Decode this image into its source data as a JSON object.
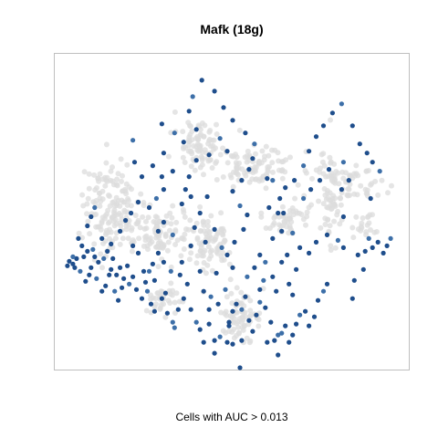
{
  "chart_data": {
    "type": "scatter",
    "title": "Mafk (18g)",
    "caption": "Cells with AUC > 0.013",
    "xlabel": "",
    "ylabel": "",
    "xlim": [
      0,
      390
    ],
    "ylim": [
      0,
      348
    ],
    "axes_visible": false,
    "grid": false,
    "legend": "none",
    "colors": {
      "background_points": "#dcdcdc",
      "highlight_points": "#1f4e8c",
      "highlight_points_alt": "#3d6fa8",
      "panel_border": "#bfbfbf"
    },
    "background_clusters": [
      {
        "name": "",
        "center": [
          62,
          170
        ],
        "spread": [
          28,
          48
        ],
        "count": 150
      },
      {
        "name": "",
        "center": [
          115,
          200
        ],
        "spread": [
          30,
          28
        ],
        "count": 100
      },
      {
        "name": "",
        "center": [
          205,
          290
        ],
        "spread": [
          20,
          22
        ],
        "count": 70
      },
      {
        "name": "",
        "center": [
          170,
          205
        ],
        "spread": [
          26,
          32
        ],
        "count": 80
      },
      {
        "name": "",
        "center": [
          160,
          100
        ],
        "spread": [
          22,
          25
        ],
        "count": 80
      },
      {
        "name": "",
        "center": [
          218,
          125
        ],
        "spread": [
          45,
          18
        ],
        "count": 100
      },
      {
        "name": "",
        "center": [
          255,
          180
        ],
        "spread": [
          24,
          20
        ],
        "count": 50
      },
      {
        "name": "",
        "center": [
          305,
          160
        ],
        "spread": [
          14,
          55
        ],
        "count": 60
      },
      {
        "name": "",
        "center": [
          325,
          145
        ],
        "spread": [
          35,
          20
        ],
        "count": 55
      },
      {
        "name": "",
        "center": [
          115,
          270
        ],
        "spread": [
          20,
          16
        ],
        "count": 35
      },
      {
        "name": "",
        "center": [
          340,
          190
        ],
        "spread": [
          12,
          12
        ],
        "count": 20
      }
    ],
    "highlighted_cells": [
      [
        16,
        229
      ],
      [
        20,
        232
      ],
      [
        24,
        226
      ],
      [
        28,
        240
      ],
      [
        34,
        251
      ],
      [
        38,
        244
      ],
      [
        40,
        236
      ],
      [
        44,
        224
      ],
      [
        46,
        248
      ],
      [
        52,
        262
      ],
      [
        56,
        256
      ],
      [
        60,
        244
      ],
      [
        62,
        238
      ],
      [
        66,
        262
      ],
      [
        70,
        272
      ],
      [
        74,
        258
      ],
      [
        80,
        234
      ],
      [
        48,
        230
      ],
      [
        42,
        216
      ],
      [
        30,
        212
      ],
      [
        26,
        204
      ],
      [
        36,
        190
      ],
      [
        40,
        180
      ],
      [
        44,
        170
      ],
      [
        52,
        204
      ],
      [
        58,
        218
      ],
      [
        62,
        210
      ],
      [
        98,
        240
      ],
      [
        102,
        262
      ],
      [
        106,
        276
      ],
      [
        110,
        284
      ],
      [
        118,
        270
      ],
      [
        124,
        286
      ],
      [
        130,
        296
      ],
      [
        136,
        282
      ],
      [
        142,
        270
      ],
      [
        146,
        254
      ],
      [
        150,
        282
      ],
      [
        156,
        296
      ],
      [
        160,
        304
      ],
      [
        164,
        318
      ],
      [
        170,
        298
      ],
      [
        176,
        316
      ],
      [
        182,
        312
      ],
      [
        190,
        318
      ],
      [
        192,
        300
      ],
      [
        196,
        284
      ],
      [
        200,
        276
      ],
      [
        206,
        282
      ],
      [
        210,
        268
      ],
      [
        214,
        294
      ],
      [
        218,
        306
      ],
      [
        222,
        288
      ],
      [
        226,
        274
      ],
      [
        232,
        280
      ],
      [
        238,
        296
      ],
      [
        242,
        316
      ],
      [
        246,
        332
      ],
      [
        250,
        308
      ],
      [
        254,
        300
      ],
      [
        258,
        318
      ],
      [
        262,
        310
      ],
      [
        266,
        298
      ],
      [
        270,
        288
      ],
      [
        276,
        284
      ],
      [
        280,
        300
      ],
      [
        286,
        290
      ],
      [
        290,
        272
      ],
      [
        296,
        262
      ],
      [
        300,
        254
      ],
      [
        266,
        238
      ],
      [
        250,
        230
      ],
      [
        256,
        222
      ],
      [
        230,
        250
      ],
      [
        220,
        236
      ],
      [
        196,
        320
      ],
      [
        204,
        346
      ],
      [
        176,
        330
      ],
      [
        132,
        302
      ],
      [
        110,
        250
      ],
      [
        92,
        220
      ],
      [
        86,
        212
      ],
      [
        120,
        230
      ],
      [
        128,
        240
      ],
      [
        140,
        230
      ],
      [
        150,
        212
      ],
      [
        166,
        208
      ],
      [
        176,
        194
      ],
      [
        184,
        214
      ],
      [
        190,
        222
      ],
      [
        196,
        236
      ],
      [
        208,
        194
      ],
      [
        212,
        178
      ],
      [
        204,
        168
      ],
      [
        196,
        152
      ],
      [
        206,
        140
      ],
      [
        214,
        128
      ],
      [
        218,
        116
      ],
      [
        220,
        100
      ],
      [
        210,
        88
      ],
      [
        196,
        74
      ],
      [
        186,
        60
      ],
      [
        176,
        42
      ],
      [
        182,
        94
      ],
      [
        170,
        112
      ],
      [
        156,
        118
      ],
      [
        144,
        150
      ],
      [
        140,
        166
      ],
      [
        130,
        200
      ],
      [
        120,
        150
      ],
      [
        118,
        136
      ],
      [
        92,
        164
      ],
      [
        88,
        120
      ],
      [
        86,
        96
      ],
      [
        118,
        78
      ],
      [
        148,
        64
      ],
      [
        156,
        84
      ],
      [
        130,
        130
      ],
      [
        240,
        140
      ],
      [
        248,
        160
      ],
      [
        246,
        176
      ],
      [
        240,
        204
      ],
      [
        250,
        196
      ],
      [
        262,
        198
      ],
      [
        270,
        214
      ],
      [
        280,
        220
      ],
      [
        288,
        208
      ],
      [
        300,
        200
      ],
      [
        312,
        206
      ],
      [
        318,
        180
      ],
      [
        318,
        214
      ],
      [
        334,
        222
      ],
      [
        342,
        218
      ],
      [
        346,
        204
      ],
      [
        350,
        214
      ],
      [
        356,
        208
      ],
      [
        362,
        220
      ],
      [
        366,
        212
      ],
      [
        370,
        204
      ],
      [
        340,
        238
      ],
      [
        330,
        250
      ],
      [
        328,
        270
      ],
      [
        348,
        160
      ],
      [
        358,
        130
      ],
      [
        350,
        120
      ],
      [
        344,
        110
      ],
      [
        336,
        100
      ],
      [
        328,
        80
      ],
      [
        316,
        56
      ],
      [
        306,
        66
      ],
      [
        296,
        80
      ],
      [
        288,
        92
      ],
      [
        280,
        108
      ],
      [
        274,
        124
      ],
      [
        264,
        140
      ],
      [
        254,
        148
      ],
      [
        234,
        138
      ],
      [
        142,
        98
      ],
      [
        132,
        88
      ],
      [
        120,
        110
      ],
      [
        108,
        124
      ],
      [
        96,
        136
      ],
      [
        104,
        170
      ],
      [
        112,
        160
      ],
      [
        160,
        176
      ],
      [
        154,
        192
      ],
      [
        168,
        158
      ],
      [
        148,
        136
      ],
      [
        152,
        48
      ],
      [
        162,
        30
      ],
      [
        190,
        108
      ],
      [
        252,
        176
      ],
      [
        236,
        170
      ],
      [
        274,
        160
      ],
      [
        282,
        150
      ],
      [
        292,
        140
      ],
      [
        302,
        128
      ],
      [
        226,
        260
      ],
      [
        188,
        260
      ],
      [
        178,
        242
      ],
      [
        160,
        240
      ],
      [
        150,
        158
      ],
      [
        316,
        150
      ],
      [
        318,
        120
      ],
      [
        324,
        140
      ],
      [
        72,
        196
      ],
      [
        78,
        184
      ],
      [
        84,
        176
      ],
      [
        20,
        224
      ],
      [
        22,
        236
      ],
      [
        14,
        234
      ],
      [
        32,
        224
      ],
      [
        36,
        218
      ],
      [
        54,
        226
      ],
      [
        64,
        226
      ],
      [
        68,
        244
      ],
      [
        72,
        236
      ],
      [
        76,
        248
      ],
      [
        82,
        254
      ],
      [
        86,
        246
      ],
      [
        90,
        260
      ],
      [
        96,
        270
      ],
      [
        100,
        252
      ],
      [
        104,
        240
      ],
      [
        108,
        232
      ],
      [
        114,
        220
      ],
      [
        122,
        264
      ],
      [
        138,
        244
      ],
      [
        212,
        246
      ],
      [
        258,
        254
      ],
      [
        262,
        266
      ],
      [
        244,
        262
      ],
      [
        240,
        246
      ],
      [
        232,
        230
      ],
      [
        226,
        222
      ],
      [
        120,
        186
      ],
      [
        114,
        196
      ],
      [
        198,
        208
      ],
      [
        246,
        310
      ],
      [
        234,
        318
      ],
      [
        206,
        316
      ],
      [
        192,
        296
      ],
      [
        170,
        282
      ],
      [
        172,
        268
      ],
      [
        164,
        262
      ],
      [
        180,
        276
      ]
    ]
  }
}
